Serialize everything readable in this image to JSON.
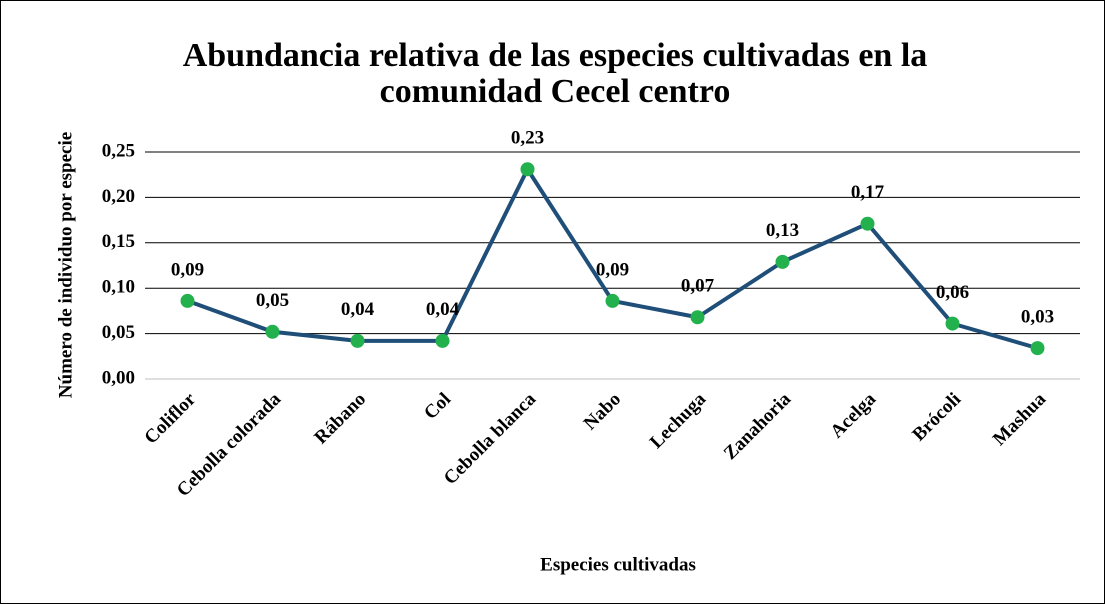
{
  "chart_data": {
    "type": "line",
    "title": "Abundancia relativa de las especies cultivadas en la comunidad Cecel centro",
    "x_label": "Especies cultivadas",
    "y_label": "Número de individuo por especie",
    "categories": [
      "Coliflor",
      "Cebolla colorada",
      "Rábano",
      "Col",
      "Cebolla blanca",
      "Nabo",
      "Lechuga",
      "Zanahoria",
      "Acelga",
      "Brócoli",
      "Mashua"
    ],
    "series": [
      {
        "name": "Abundancia relativa",
        "color": "#1f4e79",
        "marker_color": "#22b14c",
        "values": [
          0.086,
          0.052,
          0.042,
          0.042,
          0.231,
          0.086,
          0.068,
          0.129,
          0.171,
          0.061,
          0.034
        ],
        "value_labels": [
          "0,09",
          "0,05",
          "0,04",
          "0,04",
          "0,23",
          "0,09",
          "0,07",
          "0,13",
          "0,17",
          "0,06",
          "0,03"
        ]
      }
    ],
    "ylim": [
      0,
      0.25
    ],
    "yticks": [
      {
        "value": 0,
        "label": "0,00"
      },
      {
        "value": 0.05,
        "label": "0,05"
      },
      {
        "value": 0.1,
        "label": "0,10"
      },
      {
        "value": 0.15,
        "label": "0,15"
      },
      {
        "value": 0.2,
        "label": "0,20"
      },
      {
        "value": 0.25,
        "label": "0,25"
      }
    ],
    "grid": true
  }
}
